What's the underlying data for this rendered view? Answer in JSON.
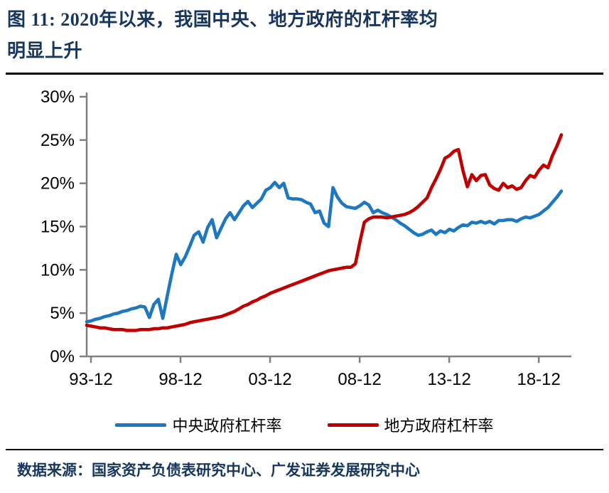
{
  "header": {
    "title_line1": "图 11: 2020年以来，我国中央、地方政府的杠杆率均",
    "title_line2": "明显上升"
  },
  "footer": {
    "source": "数据来源：国家资产负债表研究中心、广发证券发展研究中心"
  },
  "colors": {
    "title_navy": "#17365D",
    "central_blue": "#1E78BF",
    "local_red": "#C00000",
    "axis_gray": "#808080"
  },
  "chart_data": {
    "type": "line",
    "title": "",
    "xlabel": "",
    "ylabel": "",
    "x_unit": "quarter",
    "x_start": "1993-12",
    "x_end": "2020-06",
    "ylim": [
      0,
      30
    ],
    "y_ticks": [
      0,
      5,
      10,
      15,
      20,
      25,
      30
    ],
    "y_tick_suffix": "%",
    "x_tick_labels": [
      "93-12",
      "98-12",
      "03-12",
      "08-12",
      "13-12",
      "18-12"
    ],
    "x_tick_indices": [
      0,
      20,
      40,
      60,
      80,
      100
    ],
    "grid": false,
    "legend_position": "bottom",
    "axis_color": "#808080",
    "series": [
      {
        "name": "中央政府杠杆率",
        "color": "#1E78BF",
        "values": [
          4.0,
          4.1,
          4.3,
          4.4,
          4.6,
          4.7,
          4.9,
          5.0,
          5.2,
          5.3,
          5.5,
          5.6,
          5.8,
          5.7,
          4.5,
          6.0,
          6.6,
          4.4,
          7.0,
          9.5,
          11.8,
          10.6,
          11.5,
          12.7,
          14.0,
          14.4,
          13.2,
          14.9,
          15.8,
          13.7,
          14.8,
          15.9,
          16.6,
          15.8,
          16.6,
          17.4,
          17.9,
          17.2,
          17.7,
          18.2,
          19.2,
          19.5,
          20.1,
          19.5,
          20.0,
          18.3,
          18.2,
          18.2,
          18.1,
          17.8,
          17.6,
          16.6,
          16.8,
          15.4,
          15.0,
          19.5,
          18.4,
          17.7,
          17.3,
          17.2,
          17.1,
          17.4,
          17.8,
          17.5,
          16.6,
          16.9,
          16.6,
          16.4,
          16.1,
          15.8,
          15.4,
          15.1,
          14.7,
          14.3,
          14.0,
          14.1,
          14.4,
          14.6,
          14.1,
          14.5,
          14.3,
          14.7,
          14.5,
          14.9,
          15.2,
          15.1,
          15.5,
          15.4,
          15.6,
          15.4,
          15.6,
          15.3,
          15.7,
          15.7,
          15.8,
          15.8,
          15.6,
          15.9,
          16.1,
          16.0,
          16.2,
          16.4,
          16.8,
          17.2,
          17.8,
          18.4,
          19.1
        ]
      },
      {
        "name": "地方政府杠杆率",
        "color": "#C00000",
        "values": [
          3.6,
          3.5,
          3.4,
          3.3,
          3.3,
          3.2,
          3.1,
          3.1,
          3.1,
          3.0,
          3.0,
          3.0,
          3.1,
          3.1,
          3.1,
          3.2,
          3.2,
          3.3,
          3.3,
          3.4,
          3.5,
          3.6,
          3.7,
          3.9,
          4.0,
          4.1,
          4.2,
          4.3,
          4.4,
          4.5,
          4.6,
          4.8,
          5.0,
          5.2,
          5.5,
          5.8,
          6.0,
          6.3,
          6.5,
          6.8,
          7.0,
          7.3,
          7.5,
          7.7,
          7.9,
          8.1,
          8.3,
          8.5,
          8.7,
          8.9,
          9.1,
          9.3,
          9.5,
          9.7,
          9.9,
          10.0,
          10.1,
          10.2,
          10.3,
          10.3,
          10.7,
          13.2,
          15.5,
          15.9,
          16.1,
          16.1,
          16.1,
          16.0,
          16.1,
          16.2,
          16.3,
          16.4,
          16.6,
          16.9,
          17.3,
          17.8,
          18.3,
          19.5,
          20.5,
          21.6,
          22.9,
          23.2,
          23.7,
          23.9,
          21.5,
          19.6,
          21.0,
          20.3,
          20.9,
          21.0,
          19.8,
          19.4,
          19.2,
          20.0,
          19.5,
          19.7,
          19.3,
          19.5,
          20.3,
          20.9,
          20.7,
          21.5,
          22.1,
          21.8,
          23.2,
          24.3,
          25.6
        ]
      }
    ]
  }
}
